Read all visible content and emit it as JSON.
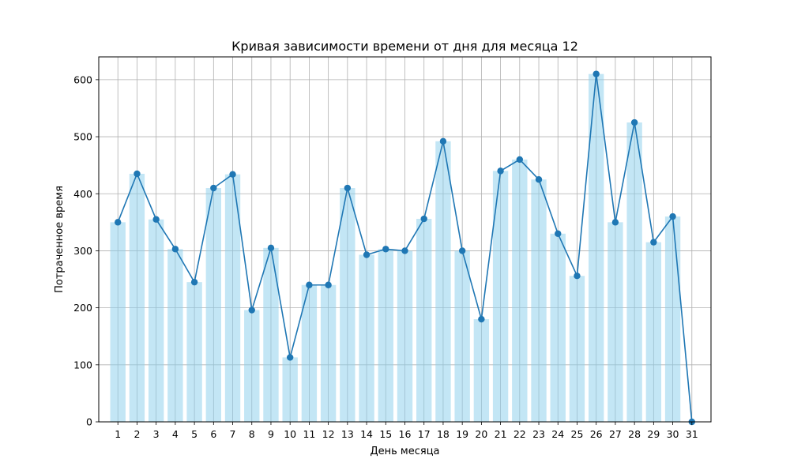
{
  "chart_data": {
    "type": "bar",
    "title": "Кривая зависимости времени от дня для месяца 12",
    "xlabel": "День месяца",
    "ylabel": "Потраченное время",
    "categories": [
      "1",
      "2",
      "3",
      "4",
      "5",
      "6",
      "7",
      "8",
      "9",
      "10",
      "11",
      "12",
      "13",
      "14",
      "15",
      "16",
      "17",
      "18",
      "19",
      "20",
      "21",
      "22",
      "23",
      "24",
      "25",
      "26",
      "27",
      "28",
      "29",
      "30",
      "31"
    ],
    "x": [
      1,
      2,
      3,
      4,
      5,
      6,
      7,
      8,
      9,
      10,
      11,
      12,
      13,
      14,
      15,
      16,
      17,
      18,
      19,
      20,
      21,
      22,
      23,
      24,
      25,
      26,
      27,
      28,
      29,
      30,
      31
    ],
    "values": [
      350,
      435,
      355,
      303,
      245,
      410,
      434,
      196,
      305,
      113,
      240,
      240,
      410,
      293,
      303,
      300,
      356,
      492,
      300,
      180,
      440,
      460,
      425,
      330,
      256,
      610,
      350,
      525,
      315,
      360,
      0
    ],
    "series": [
      {
        "type": "bar",
        "values": [
          350,
          435,
          355,
          303,
          245,
          410,
          434,
          196,
          305,
          113,
          240,
          240,
          410,
          293,
          303,
          300,
          356,
          492,
          300,
          180,
          440,
          460,
          425,
          330,
          256,
          610,
          350,
          525,
          315,
          360,
          0
        ],
        "color": "#87ceeb"
      },
      {
        "type": "line",
        "values": [
          350,
          435,
          355,
          303,
          245,
          410,
          434,
          196,
          305,
          113,
          240,
          240,
          410,
          293,
          303,
          300,
          356,
          492,
          300,
          180,
          440,
          460,
          425,
          330,
          256,
          610,
          350,
          525,
          315,
          360,
          0
        ],
        "color": "#1f77b4",
        "marker": "circle"
      }
    ],
    "yticks": [
      0,
      100,
      200,
      300,
      400,
      500,
      600
    ],
    "xlim": [
      0,
      32
    ],
    "ylim": [
      0,
      640
    ],
    "grid": true
  }
}
